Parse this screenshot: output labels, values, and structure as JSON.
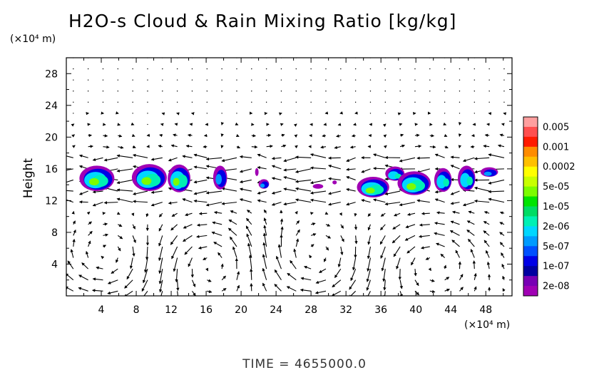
{
  "chart_data": {
    "type": "heatmap",
    "title": "H2O-s Cloud & Rain Mixing Ratio [kg/kg]",
    "ylabel": "Height",
    "y_units": "(×10⁴ m)",
    "x_units": "(×10⁴ m)",
    "xlim": [
      0,
      51
    ],
    "ylim": [
      0,
      30
    ],
    "x_ticks": [
      "4",
      "8",
      "12",
      "16",
      "20",
      "24",
      "28",
      "32",
      "36",
      "40",
      "44",
      "48"
    ],
    "y_ticks": [
      "4",
      "8",
      "12",
      "16",
      "20",
      "24",
      "28"
    ],
    "colorbar": {
      "labels": [
        "0.005",
        "0.001",
        "0.0002",
        "5e-05",
        "1e-05",
        "2e-06",
        "5e-07",
        "1e-07",
        "2e-08"
      ],
      "colors": [
        "#ff9f9f",
        "#ff4f4f",
        "#ff1a00",
        "#ff8c00",
        "#ffc000",
        "#ffff00",
        "#c8ff00",
        "#7cfc00",
        "#00e400",
        "#00dc64",
        "#00f0b4",
        "#00d7ff",
        "#009bff",
        "#0050ff",
        "#0000e6",
        "#0000a0",
        "#7800b4",
        "#a000b4"
      ]
    },
    "clouds": [
      {
        "x": 3.5,
        "y": 14.8,
        "w": 4.0,
        "h": 3.2,
        "level": 3
      },
      {
        "x": 9.5,
        "y": 14.9,
        "w": 4.0,
        "h": 3.4,
        "level": 3
      },
      {
        "x": 12.9,
        "y": 14.8,
        "w": 2.6,
        "h": 3.5,
        "level": 3
      },
      {
        "x": 17.6,
        "y": 14.9,
        "w": 1.6,
        "h": 3.0,
        "level": 1
      },
      {
        "x": 21.8,
        "y": 15.6,
        "w": 0.4,
        "h": 1.0,
        "level": 0
      },
      {
        "x": 22.6,
        "y": 14.1,
        "w": 1.2,
        "h": 1.2,
        "level": 1
      },
      {
        "x": 28.8,
        "y": 13.8,
        "w": 1.2,
        "h": 0.6,
        "level": 0
      },
      {
        "x": 30.7,
        "y": 14.3,
        "w": 0.5,
        "h": 0.5,
        "level": 0
      },
      {
        "x": 35.1,
        "y": 13.7,
        "w": 3.7,
        "h": 2.6,
        "level": 3
      },
      {
        "x": 37.6,
        "y": 15.4,
        "w": 2.2,
        "h": 1.8,
        "level": 2
      },
      {
        "x": 39.8,
        "y": 14.2,
        "w": 3.8,
        "h": 3.0,
        "level": 3
      },
      {
        "x": 43.1,
        "y": 14.6,
        "w": 2.0,
        "h": 3.0,
        "level": 2
      },
      {
        "x": 45.8,
        "y": 14.8,
        "w": 2.0,
        "h": 3.2,
        "level": 2
      },
      {
        "x": 48.4,
        "y": 15.6,
        "w": 2.0,
        "h": 1.2,
        "level": 1
      }
    ],
    "time_label": "TIME  =  4655000.0"
  },
  "icons": [
    "x-axis-scale-label",
    "y-axis-scale-label"
  ]
}
